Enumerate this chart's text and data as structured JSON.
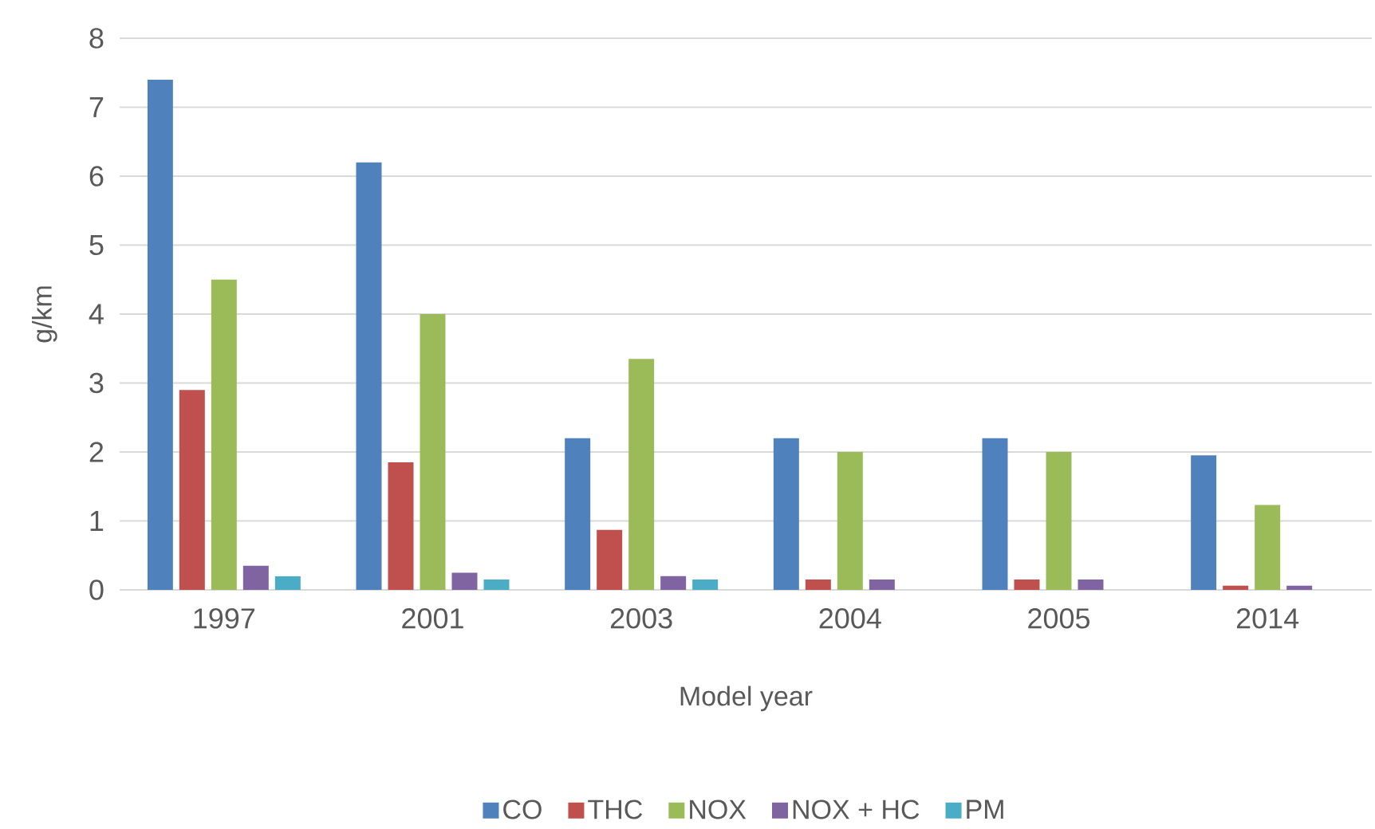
{
  "chart_data": {
    "type": "bar",
    "xlabel": "Model year",
    "ylabel": "g/km",
    "categories": [
      "1997",
      "2001",
      "2003",
      "2004",
      "2005",
      "2014"
    ],
    "series": [
      {
        "name": "CO",
        "color": "#4f81bd",
        "values": [
          7.4,
          6.2,
          2.2,
          2.2,
          2.2,
          1.95
        ]
      },
      {
        "name": "THC",
        "color": "#c0504d",
        "values": [
          2.9,
          1.85,
          0.87,
          0.15,
          0.15,
          0.06
        ]
      },
      {
        "name": "NOX",
        "color": "#9bbb59",
        "values": [
          4.5,
          4.0,
          3.35,
          2.0,
          2.0,
          1.23
        ]
      },
      {
        "name": "NOX + HC",
        "color": "#8064a2",
        "values": [
          0.35,
          0.25,
          0.2,
          0.15,
          0.15,
          0.06
        ]
      },
      {
        "name": "PM",
        "color": "#4bacc6",
        "values": [
          0.2,
          0.15,
          0.15,
          null,
          null,
          null
        ]
      }
    ],
    "ylim": [
      0,
      8
    ],
    "yticks": [
      0,
      1,
      2,
      3,
      4,
      5,
      6,
      7,
      8
    ],
    "grid": "y",
    "legend": "bottom"
  }
}
